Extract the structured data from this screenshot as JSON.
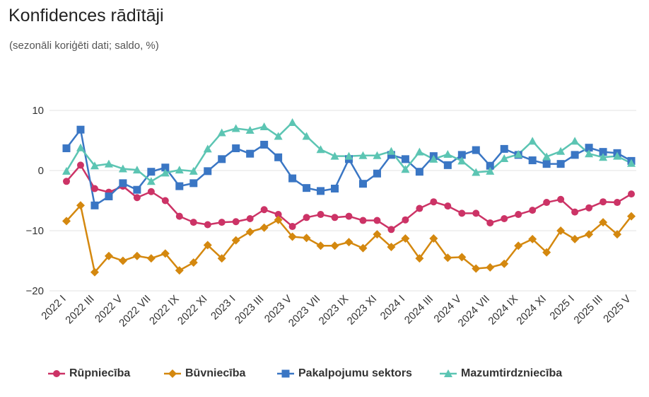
{
  "header": {
    "title": "Konfidences rādītāji",
    "subtitle": "(sezonāli koriģēti dati; saldo, %)"
  },
  "chart_data": {
    "type": "line",
    "title": "Konfidences rādītāji",
    "subtitle": "(sezonāli koriģēti dati; saldo, %)",
    "xlabel": "",
    "ylabel": "",
    "ylim": [
      -20,
      10
    ],
    "yticks": [
      10,
      0,
      -10,
      -20
    ],
    "grid": "horizontal",
    "legend_position": "bottom",
    "categories": [
      "2022 I",
      "2022 II",
      "2022 III",
      "2022 IV",
      "2022 V",
      "2022 VI",
      "2022 VII",
      "2022 VIII",
      "2022 IX",
      "2022 X",
      "2022 XI",
      "2022 XII",
      "2023 I",
      "2023 II",
      "2023 III",
      "2023 IV",
      "2023 V",
      "2023 VI",
      "2023 VII",
      "2023 VIII",
      "2023 IX",
      "2023 X",
      "2023 XI",
      "2023 XII",
      "2024 I",
      "2024 II",
      "2024 III",
      "2024 IV",
      "2024 V",
      "2024 VI",
      "2024 VII",
      "2024 VIII",
      "2024 IX",
      "2024 X",
      "2024 XI",
      "2024 XII",
      "2025 I",
      "2025 II",
      "2025 III",
      "2025 IV",
      "2025 V"
    ],
    "tick_labels": [
      "2022 I",
      "2022 III",
      "2022 V",
      "2022 VII",
      "2022 IX",
      "2022 XI",
      "2023 I",
      "2023 III",
      "2023 V",
      "2023 VII",
      "2023 IX",
      "2023 XI",
      "2024 I",
      "2024 III",
      "2024 V",
      "2024 VII",
      "2024 IX",
      "2024 XI",
      "2025 I",
      "2025 III",
      "2025 V"
    ],
    "series": [
      {
        "name": "Rūpniecība",
        "color": "#cc3366",
        "marker": "circle",
        "values": [
          -1.8,
          0.9,
          -3.0,
          -3.6,
          -2.6,
          -4.5,
          -3.5,
          -5.0,
          -7.6,
          -8.6,
          -9.0,
          -8.6,
          -8.5,
          -8.0,
          -6.5,
          -7.3,
          -9.3,
          -7.8,
          -7.3,
          -7.8,
          -7.6,
          -8.3,
          -8.3,
          -9.8,
          -8.2,
          -6.3,
          -5.2,
          -5.9,
          -7.1,
          -7.1,
          -8.7,
          -8.0,
          -7.3,
          -6.6,
          -5.3,
          -4.8,
          -6.9,
          -6.2,
          -5.2,
          -5.3,
          -3.9
        ]
      },
      {
        "name": "Būvniecība",
        "color": "#d4880f",
        "marker": "diamond",
        "values": [
          -8.4,
          -5.8,
          -16.9,
          -14.2,
          -15.0,
          -14.2,
          -14.6,
          -13.8,
          -16.6,
          -15.3,
          -12.4,
          -14.6,
          -11.6,
          -10.2,
          -9.5,
          -8.2,
          -11.0,
          -11.2,
          -12.5,
          -12.5,
          -11.9,
          -12.9,
          -10.6,
          -12.7,
          -11.3,
          -14.6,
          -11.3,
          -14.5,
          -14.4,
          -16.3,
          -16.1,
          -15.5,
          -12.5,
          -11.4,
          -13.6,
          -10.0,
          -11.4,
          -10.6,
          -8.6,
          -10.6,
          -7.6
        ]
      },
      {
        "name": "Pakalpojumu sektors",
        "color": "#3a76c4",
        "marker": "square",
        "values": [
          3.7,
          6.8,
          -5.8,
          -4.3,
          -2.1,
          -3.2,
          -0.2,
          0.5,
          -2.6,
          -2.1,
          -0.1,
          1.9,
          3.7,
          2.8,
          4.3,
          2.2,
          -1.3,
          -2.9,
          -3.4,
          -3.0,
          1.9,
          -2.2,
          -0.5,
          2.6,
          1.9,
          -0.2,
          2.4,
          0.9,
          2.6,
          3.4,
          0.8,
          3.6,
          2.6,
          1.7,
          1.1,
          1.1,
          2.6,
          3.8,
          3.1,
          2.9,
          1.6
        ]
      },
      {
        "name": "Mazumtirdzniecība",
        "color": "#5cc5b3",
        "marker": "triangle",
        "values": [
          -0.1,
          3.8,
          0.8,
          1.1,
          0.3,
          0.1,
          -1.8,
          -0.4,
          0.1,
          -0.1,
          3.6,
          6.3,
          7.0,
          6.7,
          7.3,
          5.7,
          8.0,
          5.7,
          3.5,
          2.4,
          2.4,
          2.5,
          2.5,
          3.2,
          0.2,
          3.1,
          1.9,
          2.7,
          1.6,
          -0.3,
          -0.1,
          2.0,
          2.7,
          4.9,
          2.3,
          3.2,
          4.9,
          2.8,
          2.2,
          2.4,
          1.2
        ]
      }
    ]
  }
}
